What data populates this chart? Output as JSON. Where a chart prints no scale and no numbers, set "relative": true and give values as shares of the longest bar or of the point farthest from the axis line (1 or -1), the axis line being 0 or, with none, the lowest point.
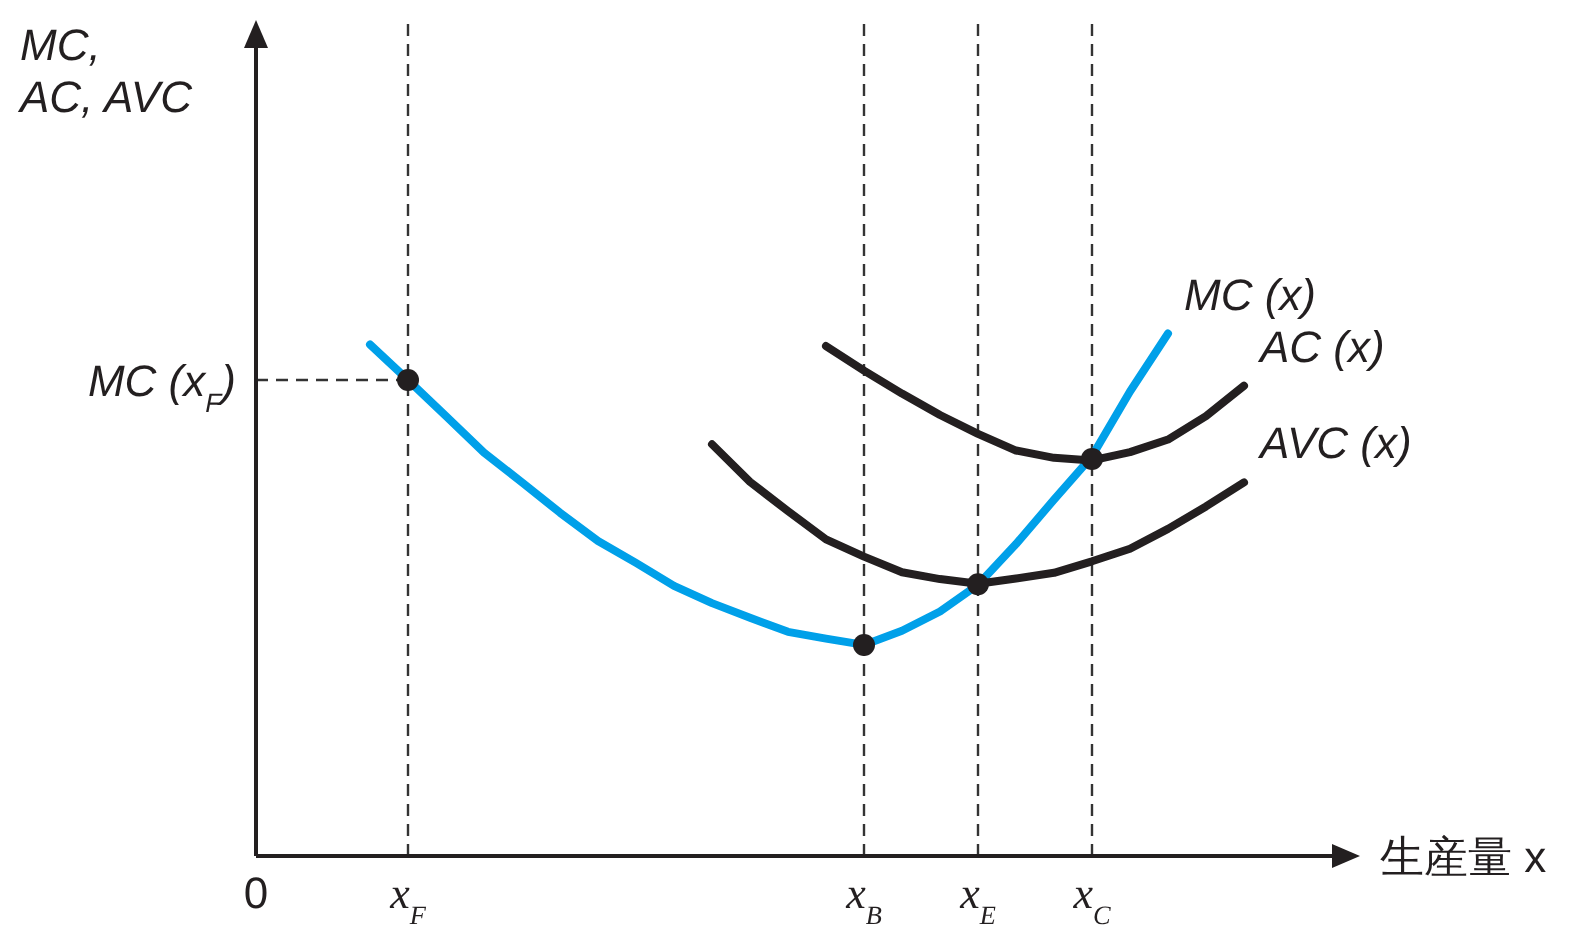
{
  "chart_data": {
    "type": "line",
    "relative": true,
    "xlabel": "生産量 x",
    "ylabel": "MC,\nAC, AVC",
    "categories": [
      "0",
      null,
      null,
      null,
      "x$_{F}$",
      null,
      null,
      null,
      null,
      null,
      null,
      null,
      null,
      null,
      null,
      null,
      "x$_{B}$",
      null,
      null,
      "x$_{E}$",
      null,
      null,
      "x$_{C}$",
      null,
      null,
      null,
      null,
      null,
      null
    ],
    "ref_lines": [
      {
        "axis": "x",
        "value": "x$_{F}$",
        "line_style": "dashed",
        "color": "#333333"
      },
      {
        "axis": "x",
        "value": "x$_{B}$",
        "line_style": "dashed",
        "color": "#333333"
      },
      {
        "axis": "x",
        "value": "x$_{E}$",
        "line_style": "dashed",
        "color": "#333333"
      },
      {
        "axis": "x",
        "value": "x$_{C}$",
        "line_style": "dashed",
        "color": "#333333"
      },
      {
        "axis": "y",
        "value": 0.911,
        "label": "MC (x$_{F}$)",
        "line_style": "dashed",
        "color": "#333333"
      }
    ],
    "series": [
      {
        "name": "MC (x)",
        "type": "line",
        "color": "#00a0e9",
        "marker": "none",
        "values": [
          null,
          null,
          null,
          0.979,
          0.911,
          0.842,
          0.772,
          0.715,
          0.657,
          0.603,
          0.561,
          0.517,
          0.484,
          0.456,
          0.429,
          0.416,
          0.404,
          0.431,
          0.468,
          0.519,
          0.597,
          0.682,
          0.765,
          0.889,
          1.0,
          null,
          null,
          null,
          null
        ]
      },
      {
        "name": "AC (x)",
        "type": "line",
        "color": "#231f20",
        "marker": "none",
        "values": [
          null,
          null,
          null,
          null,
          null,
          null,
          null,
          null,
          null,
          null,
          null,
          null,
          null,
          null,
          null,
          0.976,
          0.929,
          0.885,
          0.844,
          0.808,
          0.776,
          0.762,
          0.757,
          0.773,
          0.797,
          0.842,
          0.9,
          null,
          null
        ]
      },
      {
        "name": "AVC (x)",
        "type": "line",
        "color": "#231f20",
        "marker": "none",
        "values": [
          null,
          null,
          null,
          null,
          null,
          null,
          null,
          null,
          null,
          null,
          null,
          null,
          0.788,
          0.716,
          0.66,
          0.606,
          0.573,
          0.543,
          0.53,
          0.521,
          0.531,
          0.542,
          0.564,
          0.588,
          0.626,
          0.669,
          0.715,
          null,
          null
        ]
      },
      {
        "type": "scatter",
        "color": "#231f20",
        "marker": "circle",
        "x": [
          "x$_{F}$",
          "x$_{B}$",
          "x$_{E}$",
          "x$_{C}$"
        ],
        "values": [
          0.911,
          0.404,
          0.52,
          0.76
        ]
      }
    ]
  }
}
